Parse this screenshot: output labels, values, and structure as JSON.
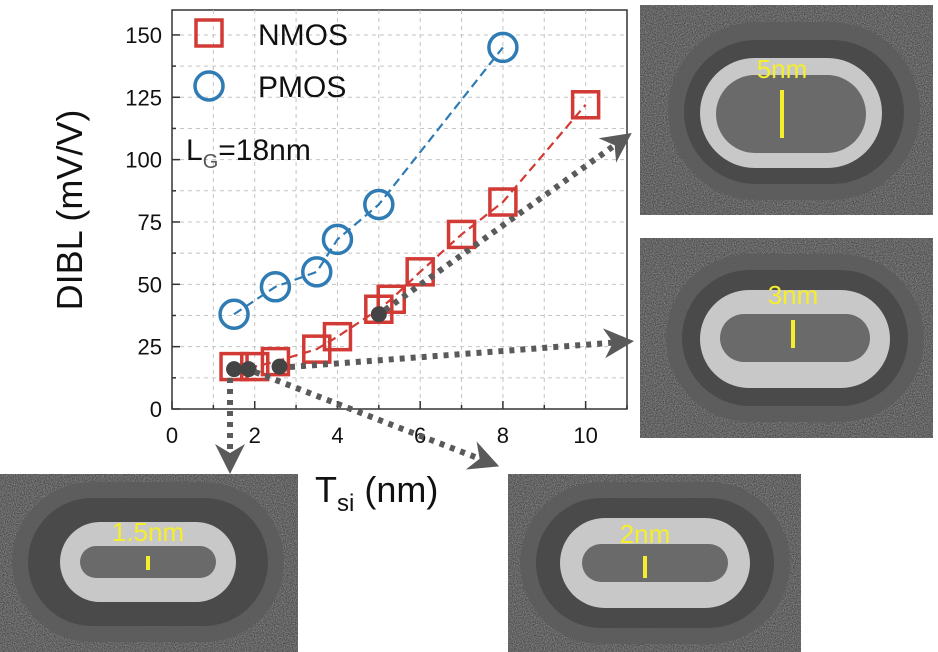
{
  "chart_data": {
    "type": "scatter",
    "xlabel": "T",
    "xlabel_sub": "si",
    "xlabel_unit": " (nm)",
    "ylabel": "DIBL (mV/V)",
    "xlim": [
      0,
      11
    ],
    "ylim": [
      0,
      160
    ],
    "xticks": [
      0,
      2,
      4,
      6,
      8,
      10
    ],
    "yticks": [
      0,
      25,
      50,
      75,
      100,
      125,
      150
    ],
    "grid": true,
    "legend_position": "top-left",
    "series": [
      {
        "name": "NMOS",
        "marker": "square",
        "color": "#d23a35",
        "x": [
          1.5,
          2.0,
          2.5,
          3.5,
          4.0,
          5.0,
          5.3,
          6.0,
          7.0,
          8.0,
          10.0
        ],
        "y": [
          17,
          17,
          19,
          24,
          29,
          40,
          44,
          55,
          70,
          83,
          122
        ]
      },
      {
        "name": "PMOS",
        "marker": "circle",
        "color": "#2f7bb3",
        "x": [
          1.5,
          2.5,
          3.5,
          4.0,
          5.0,
          8.0
        ],
        "y": [
          38,
          49,
          55,
          68,
          82,
          145
        ]
      }
    ],
    "highlight_points": {
      "color": "#444444",
      "x": [
        1.5,
        1.85,
        2.6,
        5.0
      ],
      "y": [
        16,
        16,
        17,
        38
      ]
    },
    "annotation": {
      "text_main": "L",
      "text_sub": "G",
      "text_rest": "=18nm"
    }
  },
  "tem_images": [
    {
      "id": "tem-5nm",
      "label": "5nm",
      "thickness_nm": 5
    },
    {
      "id": "tem-3nm",
      "label": "3nm",
      "thickness_nm": 3
    },
    {
      "id": "tem-1p5nm",
      "label": "1.5nm",
      "thickness_nm": 1.5
    },
    {
      "id": "tem-2nm",
      "label": "2nm",
      "thickness_nm": 2
    }
  ],
  "colors": {
    "nmos": "#d23a35",
    "pmos": "#2f7bb3",
    "arrow": "#5a5a5a",
    "tem_label": "#f4ee2c"
  }
}
